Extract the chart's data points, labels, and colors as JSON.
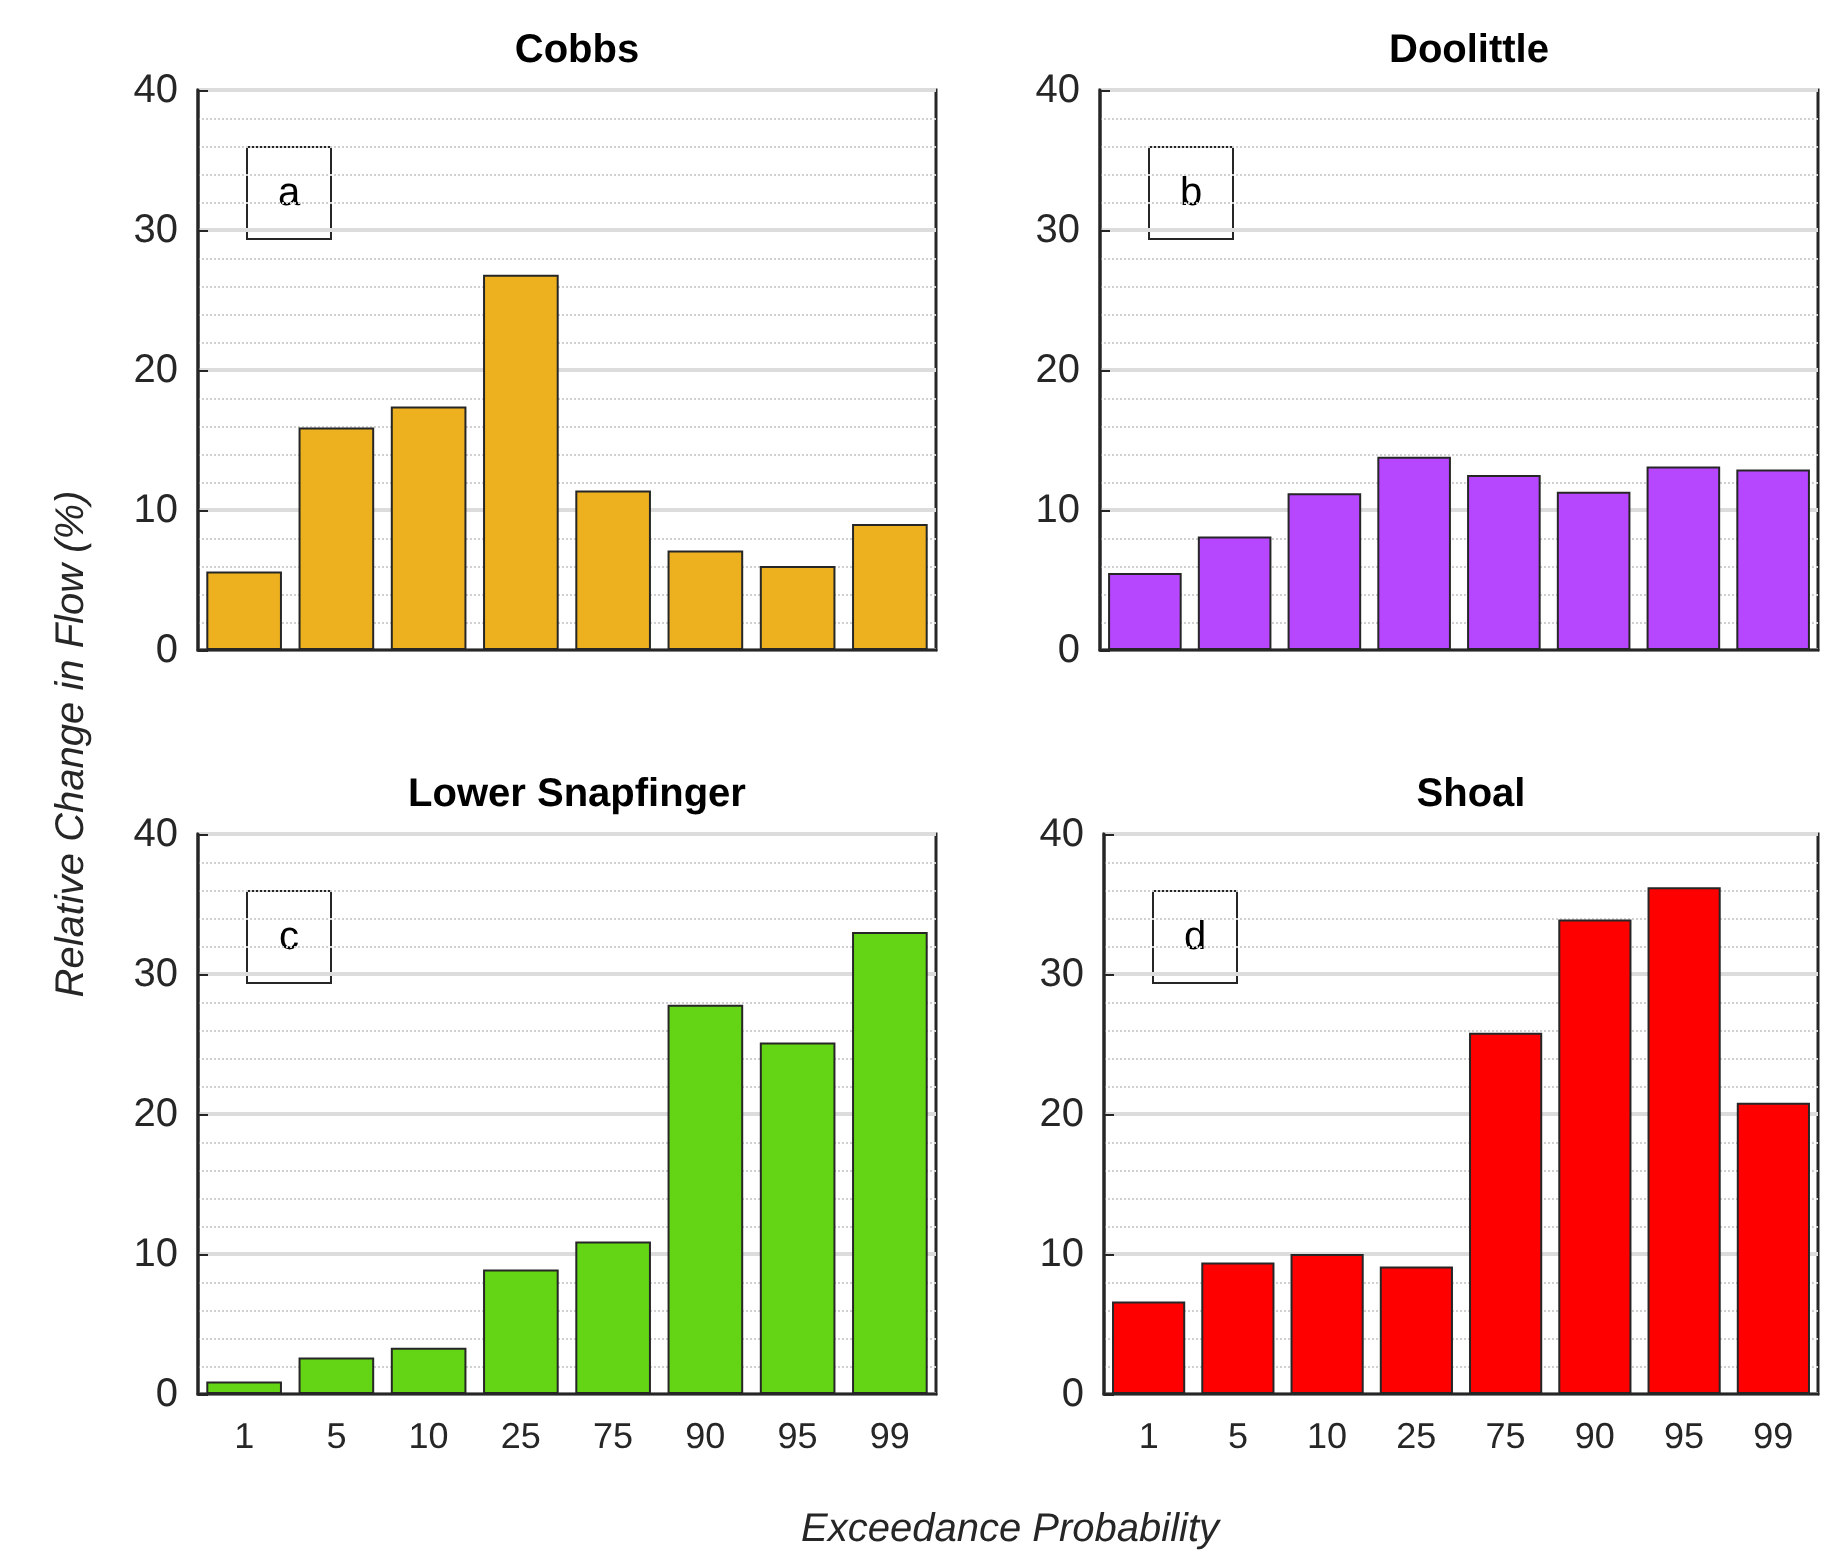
{
  "chart_data": [
    {
      "type": "bar",
      "title": "Cobbs",
      "ylabel": "Relative Change in Flow (%)",
      "categories": [
        "1",
        "5",
        "10",
        "25",
        "75",
        "90",
        "95",
        "99"
      ],
      "values": [
        5.6,
        15.9,
        17.4,
        26.8,
        11.4,
        7.1,
        6.0,
        9.0
      ],
      "color": "#edb120",
      "ylim": [
        0,
        40
      ],
      "yticks": [
        0,
        10,
        20,
        30,
        40
      ],
      "grid": "y",
      "tick_labels": "y",
      "annotations": [
        "a"
      ]
    },
    {
      "type": "bar",
      "title": "Doolittle",
      "categories": [
        "1",
        "5",
        "10",
        "25",
        "75",
        "90",
        "95",
        "99"
      ],
      "values": [
        5.5,
        8.1,
        11.2,
        13.8,
        12.5,
        11.3,
        13.1,
        12.9
      ],
      "color": "#b746ff",
      "ylim": [
        0,
        40
      ],
      "yticks": [
        0,
        10,
        20,
        30,
        40
      ],
      "grid": "y",
      "tick_labels": "y",
      "annotations": [
        "b"
      ]
    },
    {
      "type": "bar",
      "title": "Lower Snapfinger",
      "xlabel": "Exceedance Probability",
      "categories": [
        "1",
        "5",
        "10",
        "25",
        "75",
        "90",
        "95",
        "99"
      ],
      "values": [
        0.9,
        2.6,
        3.3,
        8.9,
        10.9,
        27.8,
        25.1,
        33.0
      ],
      "color": "#64d514",
      "ylim": [
        0,
        40
      ],
      "yticks": [
        0,
        10,
        20,
        30,
        40
      ],
      "grid": "y",
      "annotations": [
        "c"
      ]
    },
    {
      "type": "bar",
      "title": "Shoal",
      "categories": [
        "1",
        "5",
        "10",
        "25",
        "75",
        "90",
        "95",
        "99"
      ],
      "values": [
        6.6,
        9.4,
        10.0,
        9.1,
        25.8,
        33.9,
        36.2,
        20.8
      ],
      "color": "#ff0000",
      "ylim": [
        0,
        40
      ],
      "yticks": [
        0,
        10,
        20,
        30,
        40
      ],
      "grid": "y",
      "annotations": [
        "d"
      ]
    }
  ]
}
